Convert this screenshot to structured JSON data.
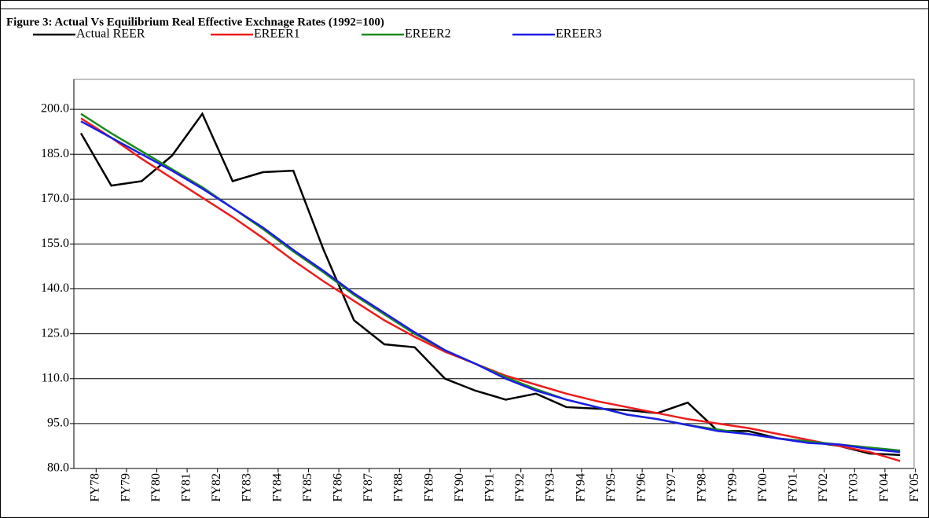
{
  "chart_data": {
    "type": "line",
    "title": "Figure 3: Actual Vs Equilibrium Real Effective Exchnage Rates (1992=100)",
    "categories": [
      "FY78",
      "FY79",
      "FY80",
      "FY81",
      "FY82",
      "FY83",
      "FY84",
      "FY85",
      "FY86",
      "FY87",
      "FY88",
      "FY89",
      "FY90",
      "FY91",
      "FY92",
      "FY93",
      "FY94",
      "FY95",
      "FY96",
      "FY97",
      "FY98",
      "FY99",
      "FY00",
      "FY01",
      "FY02",
      "FY03",
      "FY04",
      "FY05"
    ],
    "series": [
      {
        "name": "Actual REER",
        "color": "#000000",
        "values": [
          192,
          174.5,
          176,
          184.5,
          198.5,
          176,
          179,
          179.5,
          153,
          129.5,
          121.5,
          120.5,
          110,
          106,
          103,
          105,
          100.5,
          100,
          99.5,
          98.5,
          102,
          92.5,
          92.5,
          90,
          89,
          87.5,
          85,
          84.5
        ]
      },
      {
        "name": "EREER1",
        "color": "#ee1c1c",
        "values": [
          197,
          190.5,
          183.5,
          177,
          170.5,
          164,
          157,
          149.5,
          142.5,
          136,
          129.5,
          124,
          119,
          115,
          111,
          108,
          105,
          102.5,
          100.5,
          98.5,
          96.5,
          95,
          93.5,
          91.5,
          89.5,
          87.5,
          85.5,
          82.5
        ]
      },
      {
        "name": "EREER2",
        "color": "#1a8a1a",
        "values": [
          198.5,
          192,
          186,
          180,
          174,
          167,
          160,
          152.5,
          145.5,
          138,
          131.5,
          125,
          119.5,
          115,
          110.5,
          106.5,
          103,
          100.5,
          98,
          96.5,
          94.5,
          93,
          91.5,
          90,
          89,
          88,
          87,
          86
        ]
      },
      {
        "name": "EREER3",
        "color": "#1c1ce6",
        "values": [
          196,
          190.5,
          185,
          179.5,
          173.5,
          167,
          160.5,
          153,
          146,
          138.5,
          132,
          125.5,
          119.5,
          115,
          110,
          106,
          103,
          100.5,
          98,
          96.5,
          94.5,
          92.5,
          91.5,
          90,
          88.5,
          88,
          86.5,
          85.5
        ]
      }
    ],
    "ylim": [
      80,
      210
    ],
    "yticks": [
      {
        "value": 80,
        "label": "80.0"
      },
      {
        "value": 95,
        "label": "95.0"
      },
      {
        "value": 110,
        "label": "110.0"
      },
      {
        "value": 125,
        "label": "125.0"
      },
      {
        "value": 140,
        "label": "140.0"
      },
      {
        "value": 155,
        "label": "155.0"
      },
      {
        "value": 170,
        "label": "170.0"
      },
      {
        "value": 185,
        "label": "185.0"
      },
      {
        "value": 200,
        "label": "200.0"
      }
    ],
    "grid": true
  }
}
